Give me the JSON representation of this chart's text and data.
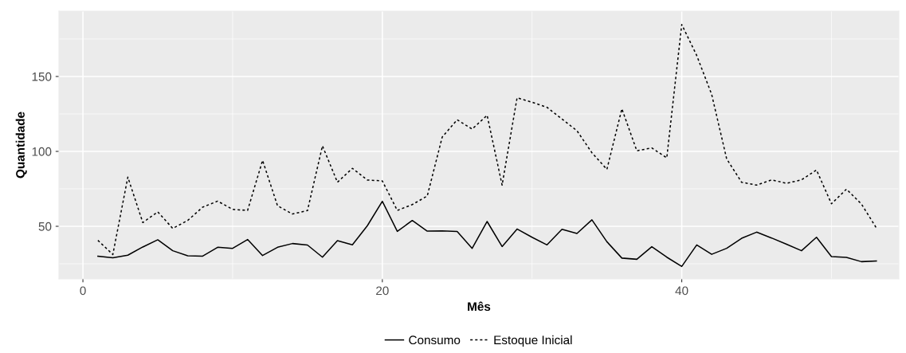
{
  "chart_data": {
    "type": "line",
    "xlabel": "Mês",
    "ylabel": "Quantidade",
    "x": [
      1,
      2,
      3,
      4,
      5,
      6,
      7,
      8,
      9,
      10,
      11,
      12,
      13,
      14,
      15,
      16,
      17,
      18,
      19,
      20,
      21,
      22,
      23,
      24,
      25,
      26,
      27,
      28,
      29,
      30,
      31,
      32,
      33,
      34,
      35,
      36,
      37,
      38,
      39,
      40,
      41,
      42,
      43,
      44,
      45,
      46,
      47,
      48,
      49,
      50,
      51,
      52,
      53
    ],
    "series": [
      {
        "name": "Consumo",
        "color": "#000000",
        "line_style": "solid",
        "values": [
          30,
          29,
          30.7,
          36.2,
          41,
          33.7,
          30.3,
          30.1,
          36,
          35.3,
          41.2,
          30.5,
          36,
          38.5,
          37.5,
          29.4,
          40.4,
          37.6,
          50.4,
          66.7,
          46.6,
          53.9,
          46.8,
          47,
          46.6,
          35.3,
          53.2,
          36.5,
          48.2,
          42.7,
          37.6,
          48,
          45.2,
          54.3,
          39.7,
          28.8,
          28,
          36.4,
          29.4,
          23.2,
          37.6,
          31.3,
          35.3,
          42,
          46.1,
          42.2,
          38,
          33.7,
          42.7,
          29.8,
          29.3,
          26.4,
          26.9
        ]
      },
      {
        "name": "Estoque Inicial",
        "color": "#000000",
        "line_style": "dotted",
        "values": [
          40.6,
          31.2,
          82.8,
          52.5,
          59.6,
          48.6,
          53.9,
          62.8,
          66.8,
          61.3,
          60.6,
          94,
          63.7,
          58.2,
          60.5,
          103.7,
          79.4,
          88.7,
          80.9,
          80.3,
          60.6,
          64.5,
          70.2,
          109.6,
          121.1,
          114.9,
          124.1,
          77.5,
          135.8,
          132.8,
          129.4,
          121.6,
          113.8,
          99.1,
          88,
          128.4,
          100.4,
          102.3,
          95.7,
          184.7,
          164,
          138,
          95,
          79.4,
          77.5,
          81,
          78.7,
          81,
          87.6,
          65,
          74.8,
          64.9,
          48.9
        ]
      }
    ],
    "xlim": [
      -1.6,
      54.5
    ],
    "ylim": [
      14.9,
      193.6
    ],
    "xticks": [
      0,
      20,
      40
    ],
    "yticks": [
      50,
      100,
      150
    ],
    "grid": true,
    "legend": "bottom"
  }
}
